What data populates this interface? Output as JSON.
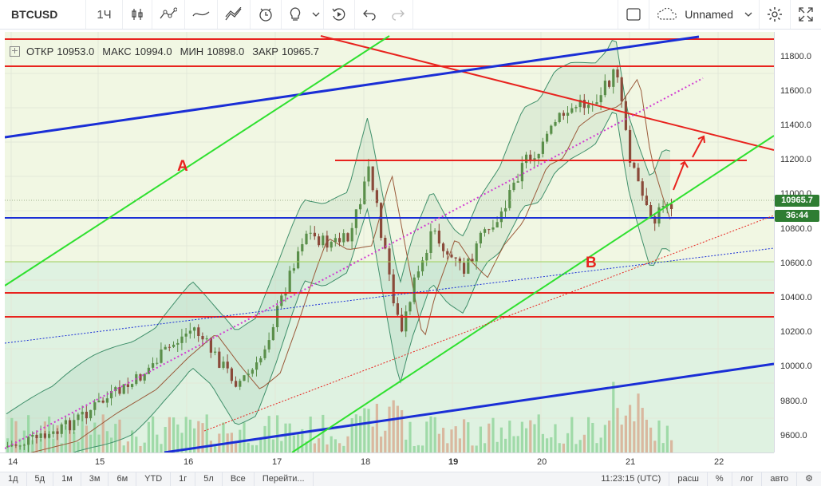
{
  "toolbar": {
    "symbol": "BTCUSD",
    "interval": "1Ч",
    "layout_name": "Unnamed",
    "icons": [
      "bar-style-icon",
      "indicators-icon",
      "line-tool-icon",
      "drawing-tool-icon",
      "alert-icon",
      "idea-icon",
      "dropdown-icon",
      "replay-icon",
      "undo-icon",
      "redo-icon",
      "fullscreen-icon",
      "layout-icon",
      "settings-icon",
      "expand-icon"
    ]
  },
  "legend": {
    "open_label": "ОТКР",
    "open_value": "10953.0",
    "high_label": "МАКС",
    "high_value": "10994.0",
    "low_label": "МИН",
    "low_value": "10898.0",
    "close_label": "ЗАКР",
    "close_value": "10965.7"
  },
  "annotations": {
    "a": "A",
    "b": "B"
  },
  "price_axis": {
    "labels": [
      "11800.0",
      "11600.0",
      "11400.0",
      "11200.0",
      "11000.0",
      "10800.0",
      "10600.0",
      "10400.0",
      "10200.0",
      "10000.0",
      "9800.0",
      "9600.0"
    ],
    "current_price": "10965.7",
    "countdown": "36:44"
  },
  "time_axis": {
    "labels": [
      "14",
      "15",
      "16",
      "17",
      "18",
      "19",
      "20",
      "21",
      "22"
    ]
  },
  "bottom_bar": {
    "ranges": [
      "1д",
      "5д",
      "1м",
      "3м",
      "6м",
      "YTD",
      "1г",
      "5л",
      "Все"
    ],
    "goto": "Перейти...",
    "clock": "11:23:15 (UTC)",
    "ext": "расш",
    "percent": "%",
    "log": "лог",
    "auto": "авто"
  },
  "colors": {
    "up_candle": "#5a8f4a",
    "down_candle": "#8a4a3a",
    "support_red": "#e8231e",
    "trend_blue": "#1a2ed6",
    "trend_green": "#2fe02f",
    "bollinger": "#3f8f6a",
    "ma": "#9a5a3a",
    "dotted_magenta": "#d23cd2",
    "badge_green": "#2e7d32"
  }
}
